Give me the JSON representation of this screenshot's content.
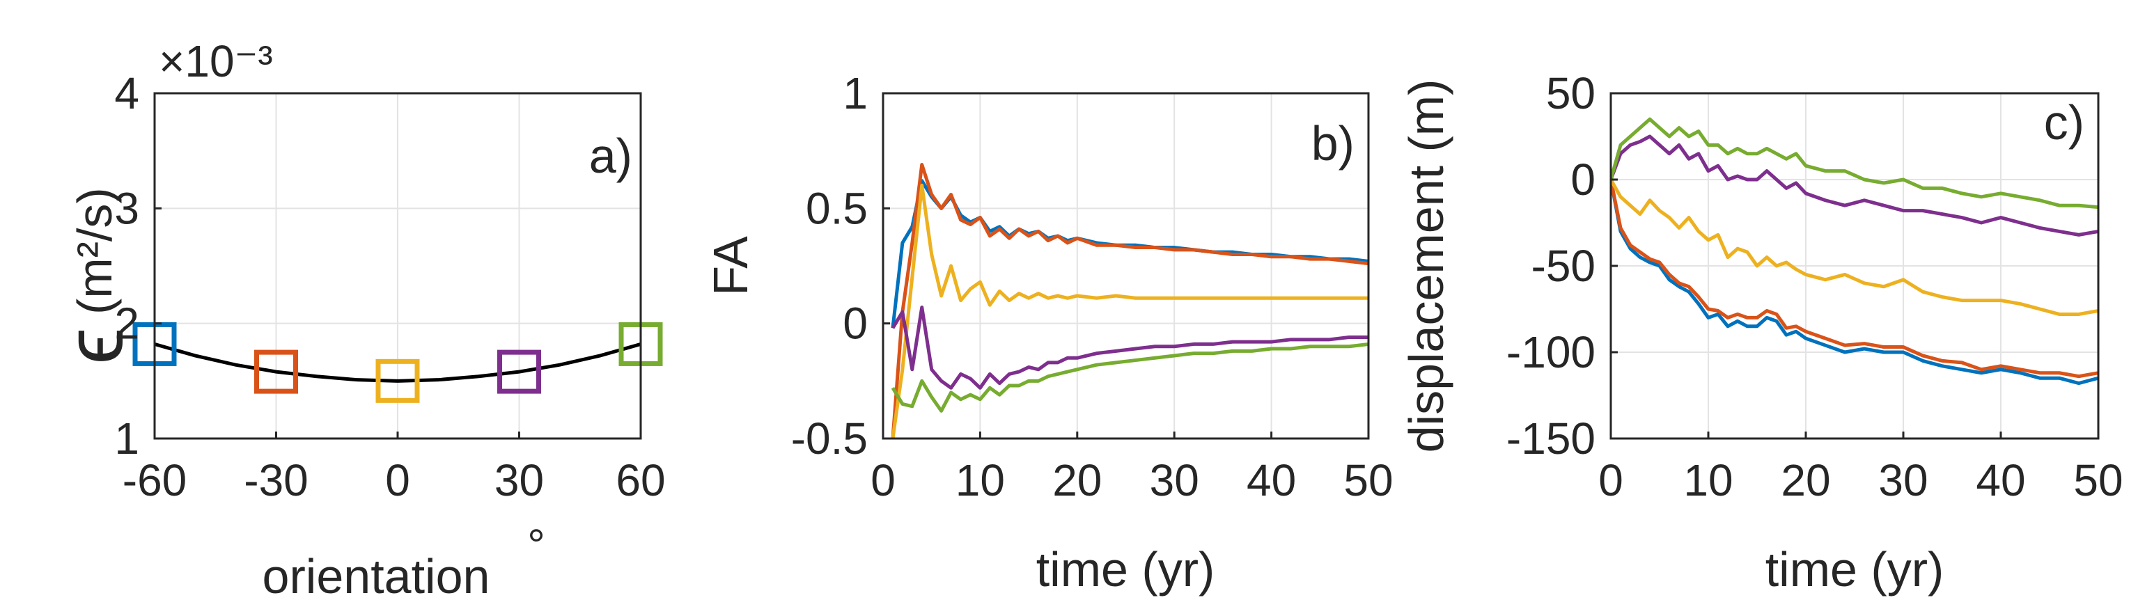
{
  "chart_data": [
    {
      "type": "line",
      "panel_label": "a)",
      "xlabel": "orientation",
      "xlabel_unit": "°",
      "ylabel_symbol": "ϵ",
      "ylabel_unit": "(m²/s)",
      "y_exponent": "×10⁻³",
      "xlim": [
        -60,
        60
      ],
      "ylim": [
        1,
        4
      ],
      "xticks": [
        -60,
        -30,
        0,
        30,
        60
      ],
      "xtick_labels": [
        "-60",
        "-30",
        "0",
        "30",
        "60"
      ],
      "yticks": [
        1,
        2,
        3,
        4
      ],
      "ytick_labels": [
        "1",
        "2",
        "3",
        "4"
      ],
      "grid": true,
      "curve": {
        "x": [
          -60,
          -50,
          -40,
          -30,
          -20,
          -10,
          0,
          10,
          20,
          30,
          40,
          50,
          60
        ],
        "y": [
          1.82,
          1.72,
          1.64,
          1.58,
          1.54,
          1.51,
          1.5,
          1.51,
          1.54,
          1.58,
          1.64,
          1.72,
          1.82
        ]
      },
      "markers": [
        {
          "x": -60,
          "y": 1.82,
          "color": "#0072bd"
        },
        {
          "x": -30,
          "y": 1.58,
          "color": "#d95319"
        },
        {
          "x": 0,
          "y": 1.5,
          "color": "#edb120"
        },
        {
          "x": 30,
          "y": 1.58,
          "color": "#7e2f8e"
        },
        {
          "x": 60,
          "y": 1.82,
          "color": "#77ac30"
        }
      ]
    },
    {
      "type": "line",
      "panel_label": "b)",
      "xlabel": "time (yr)",
      "ylabel": "FA",
      "xlim": [
        0,
        50
      ],
      "ylim": [
        -0.5,
        1
      ],
      "xticks": [
        0,
        10,
        20,
        30,
        40,
        50
      ],
      "xtick_labels": [
        "0",
        "10",
        "20",
        "30",
        "40",
        "50"
      ],
      "yticks": [
        -0.5,
        0,
        0.5,
        1
      ],
      "ytick_labels": [
        "-0.5",
        "0",
        "0.5",
        "1"
      ],
      "grid": true,
      "x": [
        1,
        2,
        3,
        4,
        5,
        6,
        7,
        8,
        9,
        10,
        11,
        12,
        13,
        14,
        15,
        16,
        17,
        18,
        19,
        20,
        22,
        24,
        26,
        28,
        30,
        32,
        34,
        36,
        38,
        40,
        42,
        44,
        46,
        48,
        50
      ],
      "series": [
        {
          "name": "-60",
          "color": "#0072bd",
          "values": [
            -0.02,
            0.35,
            0.42,
            0.62,
            0.55,
            0.5,
            0.55,
            0.47,
            0.44,
            0.46,
            0.4,
            0.42,
            0.38,
            0.41,
            0.39,
            0.4,
            0.37,
            0.38,
            0.36,
            0.37,
            0.35,
            0.34,
            0.34,
            0.33,
            0.33,
            0.32,
            0.31,
            0.31,
            0.3,
            0.3,
            0.29,
            0.29,
            0.28,
            0.28,
            0.27
          ]
        },
        {
          "name": "-30",
          "color": "#d95319",
          "values": [
            -0.5,
            0.05,
            0.35,
            0.69,
            0.56,
            0.5,
            0.56,
            0.45,
            0.43,
            0.46,
            0.38,
            0.41,
            0.37,
            0.41,
            0.38,
            0.4,
            0.36,
            0.38,
            0.35,
            0.37,
            0.34,
            0.34,
            0.33,
            0.33,
            0.32,
            0.32,
            0.31,
            0.3,
            0.3,
            0.29,
            0.29,
            0.28,
            0.28,
            0.27,
            0.26
          ]
        },
        {
          "name": "0",
          "color": "#edb120",
          "values": [
            -0.5,
            -0.2,
            0.2,
            0.6,
            0.3,
            0.12,
            0.25,
            0.1,
            0.15,
            0.18,
            0.08,
            0.14,
            0.1,
            0.13,
            0.11,
            0.13,
            0.11,
            0.12,
            0.11,
            0.12,
            0.11,
            0.12,
            0.11,
            0.11,
            0.11,
            0.11,
            0.11,
            0.11,
            0.11,
            0.11,
            0.11,
            0.11,
            0.11,
            0.11,
            0.11
          ]
        },
        {
          "name": "30",
          "color": "#7e2f8e",
          "values": [
            -0.02,
            0.05,
            -0.2,
            0.07,
            -0.2,
            -0.25,
            -0.28,
            -0.22,
            -0.24,
            -0.28,
            -0.22,
            -0.26,
            -0.22,
            -0.21,
            -0.19,
            -0.2,
            -0.17,
            -0.17,
            -0.15,
            -0.15,
            -0.13,
            -0.12,
            -0.11,
            -0.1,
            -0.1,
            -0.09,
            -0.09,
            -0.08,
            -0.08,
            -0.08,
            -0.07,
            -0.07,
            -0.07,
            -0.06,
            -0.06
          ]
        },
        {
          "name": "60",
          "color": "#77ac30",
          "values": [
            -0.28,
            -0.35,
            -0.36,
            -0.25,
            -0.32,
            -0.38,
            -0.3,
            -0.33,
            -0.31,
            -0.33,
            -0.28,
            -0.31,
            -0.27,
            -0.27,
            -0.25,
            -0.25,
            -0.23,
            -0.22,
            -0.21,
            -0.2,
            -0.18,
            -0.17,
            -0.16,
            -0.15,
            -0.14,
            -0.13,
            -0.13,
            -0.12,
            -0.12,
            -0.11,
            -0.11,
            -0.1,
            -0.1,
            -0.1,
            -0.09
          ]
        }
      ]
    },
    {
      "type": "line",
      "panel_label": "c)",
      "xlabel": "time (yr)",
      "ylabel": "displacement (m)",
      "xlim": [
        0,
        50
      ],
      "ylim": [
        -150,
        50
      ],
      "xticks": [
        0,
        10,
        20,
        30,
        40,
        50
      ],
      "xtick_labels": [
        "0",
        "10",
        "20",
        "30",
        "40",
        "50"
      ],
      "yticks": [
        -150,
        -100,
        -50,
        0,
        50
      ],
      "ytick_labels": [
        "-150",
        "-100",
        "-50",
        "0",
        "50"
      ],
      "grid": true,
      "x": [
        0,
        1,
        2,
        3,
        4,
        5,
        6,
        7,
        8,
        9,
        10,
        11,
        12,
        13,
        14,
        15,
        16,
        17,
        18,
        19,
        20,
        22,
        24,
        26,
        28,
        30,
        32,
        34,
        36,
        38,
        40,
        42,
        44,
        46,
        48,
        50
      ],
      "series": [
        {
          "name": "-60",
          "color": "#0072bd",
          "values": [
            0,
            -30,
            -40,
            -45,
            -48,
            -50,
            -58,
            -62,
            -65,
            -72,
            -80,
            -78,
            -85,
            -82,
            -85,
            -85,
            -80,
            -82,
            -90,
            -88,
            -92,
            -96,
            -100,
            -98,
            -100,
            -100,
            -105,
            -108,
            -110,
            -112,
            -110,
            -112,
            -115,
            -115,
            -118,
            -115
          ]
        },
        {
          "name": "-30",
          "color": "#d95319",
          "values": [
            0,
            -28,
            -38,
            -42,
            -46,
            -48,
            -55,
            -60,
            -62,
            -68,
            -75,
            -76,
            -80,
            -78,
            -80,
            -80,
            -76,
            -78,
            -86,
            -85,
            -88,
            -92,
            -96,
            -95,
            -97,
            -97,
            -102,
            -105,
            -106,
            -110,
            -108,
            -110,
            -112,
            -112,
            -114,
            -112
          ]
        },
        {
          "name": "0",
          "color": "#edb120",
          "values": [
            0,
            -10,
            -15,
            -20,
            -12,
            -18,
            -22,
            -28,
            -22,
            -30,
            -35,
            -32,
            -45,
            -40,
            -42,
            -50,
            -45,
            -50,
            -48,
            -52,
            -55,
            -58,
            -55,
            -60,
            -62,
            -58,
            -65,
            -68,
            -70,
            -70,
            -70,
            -72,
            -75,
            -78,
            -78,
            -76
          ]
        },
        {
          "name": "30",
          "color": "#7e2f8e",
          "values": [
            0,
            15,
            20,
            22,
            25,
            20,
            15,
            20,
            12,
            15,
            5,
            8,
            0,
            2,
            0,
            0,
            5,
            0,
            -5,
            -2,
            -8,
            -12,
            -15,
            -12,
            -15,
            -18,
            -18,
            -20,
            -22,
            -25,
            -22,
            -25,
            -28,
            -30,
            -32,
            -30
          ]
        },
        {
          "name": "60",
          "color": "#77ac30",
          "values": [
            0,
            20,
            25,
            30,
            35,
            30,
            25,
            30,
            25,
            28,
            20,
            20,
            15,
            18,
            15,
            15,
            18,
            15,
            12,
            15,
            8,
            5,
            5,
            0,
            -2,
            0,
            -5,
            -5,
            -8,
            -10,
            -8,
            -10,
            -12,
            -15,
            -15,
            -16
          ]
        }
      ]
    }
  ]
}
